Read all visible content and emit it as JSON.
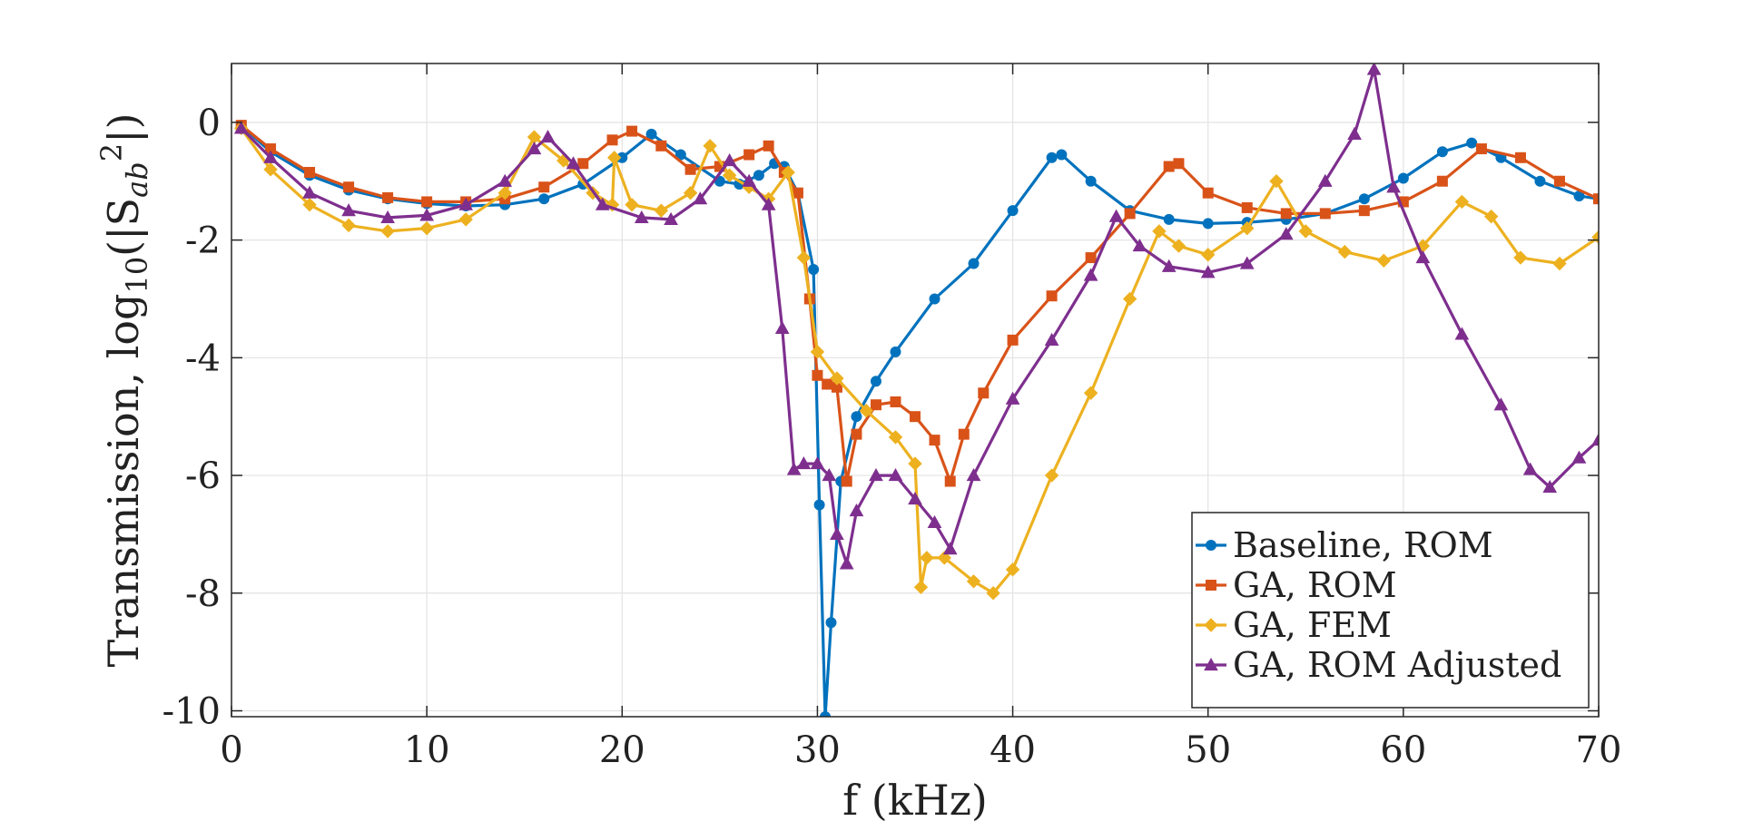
{
  "chart_data": {
    "type": "line",
    "title": "",
    "xlabel": "f (kHz)",
    "ylabel": "Transmission, log10(|Sab^2|)",
    "ylabel_parts": {
      "pre": "Transmission, log",
      "sub1": "10",
      "mid": "(|S",
      "sub2": "ab",
      "sup": "2",
      "post": "|)"
    },
    "xlim": [
      0,
      70
    ],
    "ylim": [
      -10.1,
      1.0
    ],
    "xticks": [
      0,
      10,
      20,
      30,
      40,
      50,
      60,
      70
    ],
    "xtick_labels": [
      "0",
      "10",
      "20",
      "30",
      "40",
      "50",
      "60",
      "70"
    ],
    "yticks": [
      0,
      -2,
      -4,
      -6,
      -8,
      -10
    ],
    "ytick_labels": [
      "0",
      "-2",
      "-4",
      "-6",
      "-8",
      "-10"
    ],
    "grid": true,
    "legend_position": "bottom-right",
    "series": [
      {
        "name": "Baseline, ROM",
        "color": "#0072BD",
        "marker": "circle",
        "x": [
          0.5,
          2,
          4,
          6,
          8,
          10,
          12,
          14,
          16,
          18,
          20,
          21.5,
          23,
          25,
          26,
          27,
          27.8,
          28.3,
          29,
          29.8,
          30.1,
          30.4,
          30.7,
          31.2,
          32,
          33,
          34,
          36,
          38,
          40,
          42,
          42.5,
          44,
          46,
          48,
          50,
          52,
          54,
          56,
          58,
          60,
          62,
          63.5,
          65,
          67,
          69,
          70
        ],
        "y": [
          -0.05,
          -0.5,
          -0.9,
          -1.15,
          -1.3,
          -1.38,
          -1.42,
          -1.4,
          -1.3,
          -1.05,
          -0.6,
          -0.2,
          -0.55,
          -1.0,
          -1.05,
          -0.9,
          -0.7,
          -0.75,
          -1.2,
          -2.5,
          -6.5,
          -10.1,
          -8.5,
          -6.1,
          -5.0,
          -4.4,
          -3.9,
          -3.0,
          -2.4,
          -1.5,
          -0.6,
          -0.55,
          -1.0,
          -1.5,
          -1.65,
          -1.72,
          -1.7,
          -1.65,
          -1.55,
          -1.3,
          -0.95,
          -0.5,
          -0.35,
          -0.6,
          -1.0,
          -1.25,
          -1.3
        ]
      },
      {
        "name": "GA, ROM",
        "color": "#D95319",
        "marker": "square",
        "x": [
          0.5,
          2,
          4,
          6,
          8,
          10,
          12,
          14,
          16,
          18,
          19.5,
          20.5,
          22,
          23.5,
          25,
          26.5,
          27.5,
          28.3,
          29,
          29.6,
          30,
          30.5,
          31,
          31.5,
          32,
          33,
          34,
          35,
          36,
          36.8,
          37.5,
          38.5,
          40,
          42,
          44,
          46,
          48,
          48.5,
          50,
          52,
          54,
          56,
          58,
          60,
          62,
          64,
          66,
          68,
          70
        ],
        "y": [
          -0.05,
          -0.45,
          -0.85,
          -1.1,
          -1.28,
          -1.35,
          -1.35,
          -1.3,
          -1.1,
          -0.7,
          -0.3,
          -0.15,
          -0.4,
          -0.8,
          -0.75,
          -0.55,
          -0.4,
          -0.85,
          -1.2,
          -3.0,
          -4.3,
          -4.45,
          -4.5,
          -6.1,
          -5.3,
          -4.8,
          -4.75,
          -5.0,
          -5.4,
          -6.1,
          -5.3,
          -4.6,
          -3.7,
          -2.95,
          -2.3,
          -1.55,
          -0.75,
          -0.7,
          -1.2,
          -1.45,
          -1.55,
          -1.55,
          -1.5,
          -1.35,
          -1.0,
          -0.45,
          -0.6,
          -1.0,
          -1.3
        ]
      },
      {
        "name": "GA, FEM",
        "color": "#EDB120",
        "marker": "diamond",
        "x": [
          0.5,
          2,
          4,
          6,
          8,
          10,
          12,
          14,
          15.5,
          17,
          18.5,
          19.5,
          19.6,
          20.5,
          22,
          23.5,
          24.5,
          25.5,
          26.5,
          27.5,
          28.5,
          29.3,
          30,
          31,
          32.5,
          34,
          35,
          35.3,
          35.6,
          36.5,
          38,
          39,
          40,
          42,
          44,
          46,
          47.5,
          48.5,
          50,
          52,
          53.5,
          55,
          57,
          59,
          61,
          63,
          64.5,
          66,
          68,
          70
        ],
        "y": [
          -0.1,
          -0.8,
          -1.4,
          -1.75,
          -1.85,
          -1.8,
          -1.65,
          -1.2,
          -0.25,
          -0.65,
          -1.2,
          -1.4,
          -0.6,
          -1.4,
          -1.5,
          -1.2,
          -0.4,
          -0.9,
          -1.1,
          -1.3,
          -0.85,
          -2.3,
          -3.9,
          -4.35,
          -4.9,
          -5.35,
          -5.8,
          -7.9,
          -7.4,
          -7.4,
          -7.8,
          -8.0,
          -7.6,
          -6.0,
          -4.6,
          -3.0,
          -1.85,
          -2.1,
          -2.25,
          -1.8,
          -1.0,
          -1.85,
          -2.2,
          -2.35,
          -2.1,
          -1.35,
          -1.6,
          -2.3,
          -2.4,
          -1.95
        ]
      },
      {
        "name": "GA, ROM Adjusted",
        "color": "#7E2F8E",
        "marker": "triangle",
        "x": [
          0.5,
          2,
          4,
          6,
          8,
          10,
          12,
          14,
          15.5,
          16.2,
          17.5,
          19,
          21,
          22.5,
          24,
          25.5,
          26.5,
          27.5,
          28.2,
          28.8,
          29.3,
          30,
          30.6,
          31,
          31.5,
          32,
          33,
          34,
          35,
          36,
          36.8,
          38,
          40,
          42,
          44,
          45.3,
          46.5,
          48,
          50,
          52,
          54,
          56,
          57.5,
          58.5,
          59.5,
          61,
          63,
          65,
          66.5,
          67.5,
          69,
          70
        ],
        "y": [
          -0.1,
          -0.6,
          -1.2,
          -1.5,
          -1.62,
          -1.58,
          -1.4,
          -1.0,
          -0.45,
          -0.25,
          -0.7,
          -1.4,
          -1.62,
          -1.65,
          -1.3,
          -0.65,
          -1.0,
          -1.4,
          -3.5,
          -5.9,
          -5.8,
          -5.8,
          -6.0,
          -7.0,
          -7.5,
          -6.6,
          -6.0,
          -6.0,
          -6.4,
          -6.8,
          -7.25,
          -6.0,
          -4.7,
          -3.7,
          -2.6,
          -1.6,
          -2.1,
          -2.45,
          -2.55,
          -2.4,
          -1.9,
          -1.0,
          -0.2,
          0.9,
          -1.1,
          -2.3,
          -3.6,
          -4.8,
          -5.9,
          -6.2,
          -5.7,
          -5.4
        ]
      }
    ]
  }
}
